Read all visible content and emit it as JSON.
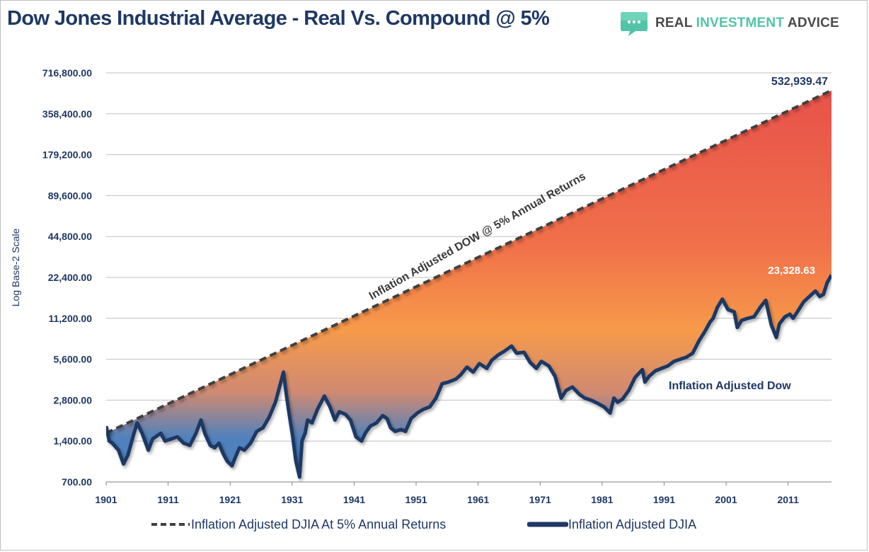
{
  "header": {
    "title": "Dow Jones Industrial Average - Real Vs. Compound @ 5%",
    "logo": {
      "word1": "REAL ",
      "word2": "INVESTMENT",
      "word3": " ADVICE",
      "icon": "speech-bubble-icon",
      "brand_color": "#53c4a7"
    }
  },
  "legend": {
    "compound_label": "Inflation Adjusted DJIA At 5% Annual Returns",
    "real_label": "Inflation Adjusted DJIA"
  },
  "annotations": {
    "compound_end_value": "532,939.47",
    "real_end_value": "23,328.63",
    "compound_line_label": "Inflation Adjusted DOW @ 5% Annual Returns",
    "real_line_label": "Inflation Adjusted Dow"
  },
  "chart_data": {
    "type": "line",
    "title": "Dow Jones Industrial Average - Real Vs. Compound @ 5%",
    "xlabel": "",
    "ylabel": "Log Base-2 Scale",
    "yscale": "log2",
    "ylim": [
      700,
      716800
    ],
    "xlim": [
      1901,
      2018
    ],
    "y_ticks": [
      700,
      1400,
      2800,
      5600,
      11200,
      22400,
      44800,
      89600,
      179200,
      358400,
      716800
    ],
    "y_tick_labels": [
      "700.00",
      "1,400.00",
      "2,800.00",
      "5,600.00",
      "11,200.00",
      "22,400.00",
      "44,800.00",
      "89,600.00",
      "179,200.00",
      "358,400.00",
      "716,800.00"
    ],
    "x_ticks": [
      1901,
      1911,
      1921,
      1931,
      1941,
      1951,
      1961,
      1971,
      1981,
      1991,
      2001,
      2011
    ],
    "x_tick_labels": [
      "1901",
      "1911",
      "1921",
      "1931",
      "1941",
      "1951",
      "1961",
      "1971",
      "1981",
      "1991",
      "2001",
      "2011"
    ],
    "grid": true,
    "legend_position": "bottom",
    "colors": {
      "compound": "#404040",
      "real": "#1f3864",
      "fill_top": "#e8524a",
      "fill_mid": "#f79a4a",
      "fill_bottom": "#4f81bd"
    },
    "series": [
      {
        "name": "Inflation Adjusted DJIA At 5% Annual Returns",
        "style": "dashed",
        "x": [
          1901,
          2018
        ],
        "y": [
          1600,
          532939.47
        ]
      },
      {
        "name": "Inflation Adjusted DJIA",
        "style": "solid",
        "x": [
          1901,
          1901.5,
          1902,
          1903,
          1903.8,
          1904.5,
          1905.5,
          1906,
          1906.8,
          1907.8,
          1908.5,
          1909.8,
          1910.5,
          1911.5,
          1912.5,
          1913.5,
          1914.5,
          1915.5,
          1916.3,
          1916.9,
          1917.8,
          1918.5,
          1919.2,
          1919.8,
          1920.5,
          1921.3,
          1921.8,
          1922.5,
          1923.3,
          1924.3,
          1925.3,
          1926.3,
          1927.3,
          1928.3,
          1928.9,
          1929.6,
          1930.1,
          1930.6,
          1931.1,
          1931.6,
          1932.2,
          1932.6,
          1933.1,
          1933.5,
          1934.2,
          1935.1,
          1936.2,
          1937.1,
          1937.9,
          1938.6,
          1939.6,
          1940.4,
          1941.3,
          1942.2,
          1942.8,
          1943.6,
          1944.6,
          1945.6,
          1946.3,
          1946.9,
          1947.6,
          1948.6,
          1949.3,
          1950.2,
          1951.2,
          1952.2,
          1953.2,
          1954.2,
          1955.2,
          1956.2,
          1957.4,
          1958.2,
          1959.2,
          1960.2,
          1961.2,
          1962.4,
          1963.2,
          1964.2,
          1965.2,
          1966.4,
          1967.2,
          1968.4,
          1969.4,
          1970.4,
          1971.2,
          1972.4,
          1973.4,
          1974.4,
          1975.2,
          1976.2,
          1977.3,
          1978.2,
          1979.2,
          1980.3,
          1981.3,
          1982.3,
          1982.9,
          1983.5,
          1984.3,
          1985.3,
          1986.3,
          1987.5,
          1987.9,
          1988.6,
          1989.6,
          1990.6,
          1991.6,
          1992.6,
          1993.6,
          1994.6,
          1995.6,
          1996.6,
          1997.6,
          1998.4,
          1998.9,
          1999.6,
          2000.4,
          2001.3,
          2002.3,
          2002.8,
          2003.5,
          2004.5,
          2005.5,
          2006.5,
          2007.4,
          2008.3,
          2009.1,
          2009.6,
          2010.5,
          2011.3,
          2011.8,
          2012.5,
          2013.5,
          2014.5,
          2015.4,
          2016.1,
          2016.7,
          2017.3,
          2018
        ],
        "y": [
          1800,
          1400,
          1350,
          1200,
          950,
          1100,
          1600,
          1900,
          1600,
          1200,
          1450,
          1600,
          1400,
          1450,
          1500,
          1350,
          1300,
          1600,
          2000,
          1600,
          1300,
          1250,
          1350,
          1150,
          1000,
          920,
          1050,
          1250,
          1200,
          1350,
          1650,
          1750,
          2100,
          2700,
          3400,
          4500,
          3000,
          2100,
          1500,
          1000,
          760,
          1400,
          1600,
          2000,
          1900,
          2400,
          3000,
          2500,
          2000,
          2300,
          2200,
          2000,
          1500,
          1400,
          1600,
          1800,
          1900,
          2150,
          2050,
          1750,
          1650,
          1700,
          1650,
          2050,
          2250,
          2400,
          2500,
          2900,
          3700,
          3800,
          4000,
          4300,
          4900,
          4500,
          5200,
          4800,
          5500,
          6000,
          6400,
          7000,
          6200,
          6300,
          5300,
          4800,
          5400,
          5000,
          4200,
          2900,
          3300,
          3500,
          3100,
          2900,
          2800,
          2650,
          2500,
          2250,
          2900,
          2700,
          2850,
          3300,
          4100,
          4700,
          3800,
          4200,
          4600,
          4800,
          5000,
          5400,
          5600,
          5800,
          6200,
          7600,
          9000,
          10500,
          11200,
          13500,
          15500,
          13000,
          12500,
          9600,
          10800,
          11200,
          11500,
          13500,
          15200,
          10000,
          8100,
          10200,
          11500,
          12000,
          11200,
          12500,
          14800,
          16300,
          17800,
          16200,
          16800,
          20500,
          23328.63
        ]
      }
    ]
  }
}
